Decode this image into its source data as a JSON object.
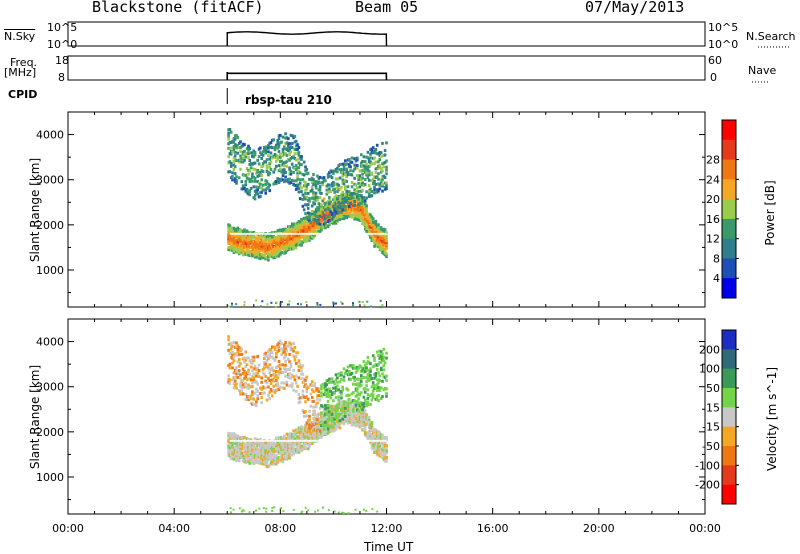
{
  "header": {
    "station": "Blackstone (fitACF)",
    "beam": "Beam 05",
    "date": "07/May/2013"
  },
  "panels": {
    "nsky_label": "N.Sky",
    "nsearch_label": "N.Search",
    "freq_label": "Freq.",
    "freq_unit": "[MHz]",
    "nave_label": "Nave",
    "cpid_label": "CPID",
    "cpid_value": "rbsp-tau 210",
    "noise_left_ticks": [
      "10^5",
      "10^0"
    ],
    "noise_right_ticks": [
      "10^5",
      "10^0"
    ],
    "freq_left_ticks": [
      "18",
      "8"
    ],
    "nave_right_ticks": [
      "60",
      "0"
    ]
  },
  "chart_data": [
    {
      "type": "heatmap",
      "panel": "power",
      "ylabel": "Slant Range [km]",
      "xlabel": "",
      "x_ticks": [
        "00:00",
        "04:00",
        "08:00",
        "12:00",
        "16:00",
        "20:00",
        "00:00"
      ],
      "y_ticks": [
        1000,
        2000,
        3000,
        4000
      ],
      "ylim": [
        180,
        4500
      ],
      "xlim_hours": [
        0,
        24
      ],
      "data_window_hours": [
        6.0,
        12.0
      ],
      "colorbar": {
        "label": "Power [dB]",
        "ticks": [
          "4",
          "8",
          "12",
          "16",
          "20",
          "24",
          "28"
        ],
        "range": [
          0,
          32
        ],
        "colors": [
          "#0000e8",
          "#1e4fb4",
          "#2e7e8c",
          "#3a9a6a",
          "#9ccc4e",
          "#f5a623",
          "#f07814",
          "#e53b1b",
          "#ff0000"
        ]
      },
      "echo_bands": [
        {
          "name": "lower band",
          "x": [
            6.0,
            6.5,
            7.0,
            7.5,
            8.0,
            8.5,
            9.0,
            9.5,
            10.0,
            10.5,
            11.0,
            11.5,
            12.0
          ],
          "y": [
            1700,
            1600,
            1550,
            1500,
            1600,
            1750,
            1900,
            2150,
            2300,
            2450,
            2350,
            1800,
            1550
          ],
          "power": 26
        },
        {
          "name": "upper band",
          "x": [
            6.0,
            6.5,
            7.0,
            7.5,
            8.0,
            8.5,
            9.0,
            9.5,
            10.0,
            10.5,
            11.0,
            11.5,
            12.0
          ],
          "y": [
            3600,
            3300,
            3100,
            3250,
            3500,
            3400,
            2600,
            2500,
            2700,
            2900,
            3000,
            3200,
            3300
          ],
          "power": 14
        }
      ]
    },
    {
      "type": "heatmap",
      "panel": "velocity",
      "ylabel": "Slant Range [km]",
      "xlabel": "Time UT",
      "x_ticks": [
        "00:00",
        "04:00",
        "08:00",
        "12:00",
        "16:00",
        "20:00",
        "00:00"
      ],
      "y_ticks": [
        1000,
        2000,
        3000,
        4000
      ],
      "ylim": [
        180,
        4500
      ],
      "xlim_hours": [
        0,
        24
      ],
      "data_window_hours": [
        6.0,
        12.0
      ],
      "colorbar": {
        "label": "Velocity [m s^-1]",
        "ticks": [
          "200",
          "100",
          "50",
          "15",
          "-15",
          "-50",
          "-100",
          "-200"
        ],
        "colors": [
          "#1c2dc4",
          "#2f6a7a",
          "#3a9a5a",
          "#73d44a",
          "#c8c8c8",
          "#f5a623",
          "#f07814",
          "#e53b1b",
          "#ff0000"
        ]
      }
    }
  ]
}
